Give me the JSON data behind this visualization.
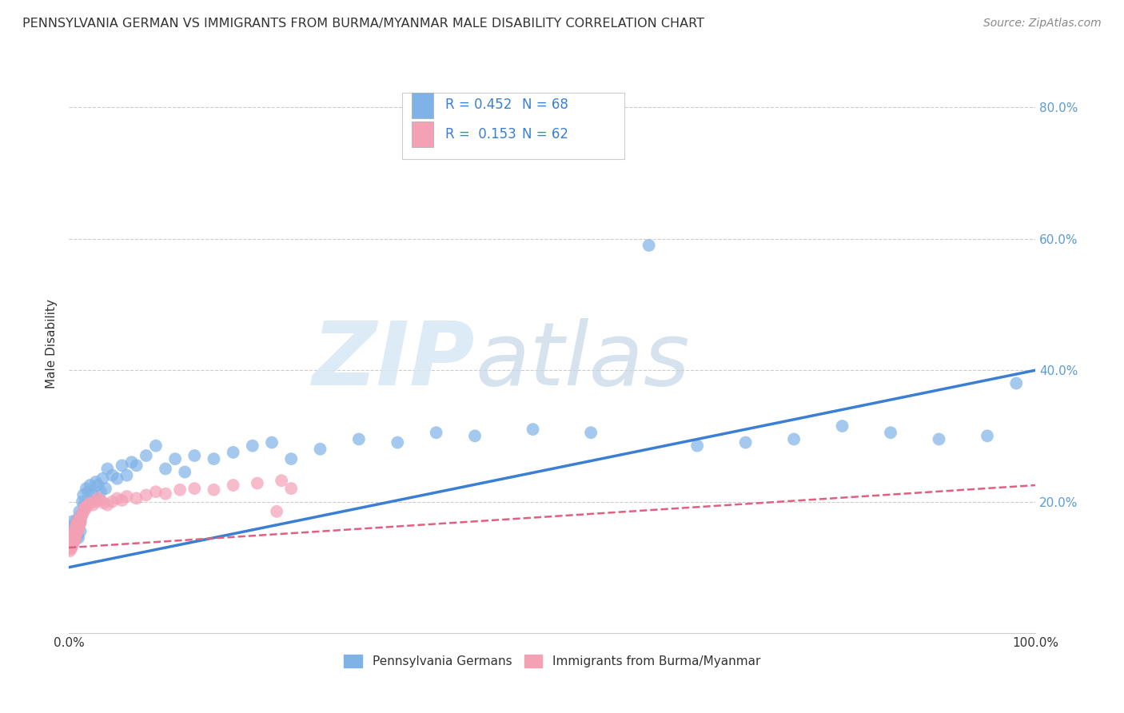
{
  "title": "PENNSYLVANIA GERMAN VS IMMIGRANTS FROM BURMA/MYANMAR MALE DISABILITY CORRELATION CHART",
  "source": "Source: ZipAtlas.com",
  "ylabel": "Male Disability",
  "legend_label1": "Pennsylvania Germans",
  "legend_label2": "Immigrants from Burma/Myanmar",
  "R1": 0.452,
  "N1": 68,
  "R2": 0.153,
  "N2": 62,
  "color1": "#7fb3e8",
  "color2": "#f4a0b5",
  "line_color1": "#3a7fd4",
  "line_color2": "#e06080",
  "bg_color": "#ffffff",
  "title_color": "#333333",
  "source_color": "#888888",
  "tick_color": "#5b9bd5",
  "grid_color": "#cccccc",
  "scatter1_x": [
    0.002,
    0.003,
    0.003,
    0.004,
    0.004,
    0.005,
    0.005,
    0.006,
    0.006,
    0.007,
    0.007,
    0.007,
    0.008,
    0.008,
    0.009,
    0.009,
    0.01,
    0.01,
    0.011,
    0.012,
    0.012,
    0.013,
    0.014,
    0.015,
    0.016,
    0.018,
    0.02,
    0.022,
    0.025,
    0.028,
    0.03,
    0.033,
    0.035,
    0.038,
    0.04,
    0.045,
    0.05,
    0.055,
    0.06,
    0.065,
    0.07,
    0.08,
    0.09,
    0.1,
    0.11,
    0.12,
    0.13,
    0.15,
    0.17,
    0.19,
    0.21,
    0.23,
    0.26,
    0.3,
    0.34,
    0.38,
    0.42,
    0.48,
    0.54,
    0.6,
    0.65,
    0.7,
    0.75,
    0.8,
    0.85,
    0.9,
    0.95,
    0.98
  ],
  "scatter1_y": [
    0.155,
    0.16,
    0.145,
    0.15,
    0.17,
    0.148,
    0.165,
    0.155,
    0.142,
    0.158,
    0.162,
    0.145,
    0.17,
    0.15,
    0.165,
    0.148,
    0.175,
    0.145,
    0.185,
    0.17,
    0.155,
    0.18,
    0.2,
    0.21,
    0.195,
    0.22,
    0.215,
    0.225,
    0.21,
    0.23,
    0.225,
    0.215,
    0.235,
    0.22,
    0.25,
    0.24,
    0.235,
    0.255,
    0.24,
    0.26,
    0.255,
    0.27,
    0.285,
    0.25,
    0.265,
    0.245,
    0.27,
    0.265,
    0.275,
    0.285,
    0.29,
    0.265,
    0.28,
    0.295,
    0.29,
    0.305,
    0.3,
    0.31,
    0.305,
    0.59,
    0.285,
    0.29,
    0.295,
    0.315,
    0.305,
    0.295,
    0.3,
    0.38
  ],
  "scatter2_x": [
    0.001,
    0.001,
    0.002,
    0.002,
    0.002,
    0.003,
    0.003,
    0.003,
    0.004,
    0.004,
    0.004,
    0.005,
    0.005,
    0.005,
    0.005,
    0.006,
    0.006,
    0.006,
    0.007,
    0.007,
    0.007,
    0.008,
    0.008,
    0.008,
    0.009,
    0.009,
    0.01,
    0.01,
    0.011,
    0.011,
    0.012,
    0.012,
    0.013,
    0.014,
    0.015,
    0.016,
    0.017,
    0.018,
    0.02,
    0.022,
    0.025,
    0.028,
    0.03,
    0.033,
    0.036,
    0.04,
    0.045,
    0.05,
    0.055,
    0.06,
    0.07,
    0.08,
    0.09,
    0.1,
    0.115,
    0.13,
    0.15,
    0.17,
    0.195,
    0.22,
    0.215,
    0.23
  ],
  "scatter2_y": [
    0.125,
    0.132,
    0.128,
    0.135,
    0.13,
    0.138,
    0.142,
    0.13,
    0.14,
    0.148,
    0.135,
    0.145,
    0.15,
    0.138,
    0.155,
    0.148,
    0.155,
    0.142,
    0.158,
    0.162,
    0.145,
    0.16,
    0.168,
    0.152,
    0.165,
    0.155,
    0.17,
    0.158,
    0.175,
    0.165,
    0.172,
    0.168,
    0.178,
    0.18,
    0.185,
    0.19,
    0.188,
    0.192,
    0.195,
    0.198,
    0.195,
    0.2,
    0.205,
    0.202,
    0.198,
    0.195,
    0.2,
    0.205,
    0.202,
    0.208,
    0.205,
    0.21,
    0.215,
    0.212,
    0.218,
    0.22,
    0.218,
    0.225,
    0.228,
    0.232,
    0.185,
    0.22
  ],
  "xlim": [
    0.0,
    1.0
  ],
  "ylim": [
    0.0,
    0.88
  ],
  "yticks": [
    0.2,
    0.4,
    0.6,
    0.8
  ],
  "yticklabels": [
    "20.0%",
    "40.0%",
    "60.0%",
    "80.0%"
  ],
  "xtick_left": "0.0%",
  "xtick_right": "100.0%"
}
